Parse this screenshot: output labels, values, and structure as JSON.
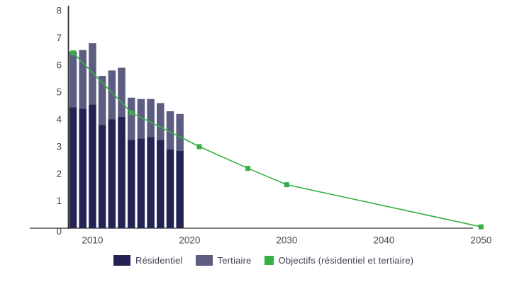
{
  "chart_data": {
    "type": "bar",
    "stacked": true,
    "title": "",
    "xlabel": "",
    "ylabel": "",
    "ylim": [
      0,
      8
    ],
    "yticks": [
      0,
      1,
      2,
      3,
      4,
      5,
      6,
      7,
      8
    ],
    "xticks": [
      2010,
      2020,
      2030,
      2040,
      2050
    ],
    "grid": false,
    "legend_position": "bottom",
    "categories": [
      2008,
      2009,
      2010,
      2011,
      2012,
      2013,
      2014,
      2015,
      2016,
      2017,
      2018,
      2019
    ],
    "series": [
      {
        "name": "Résidentiel",
        "role": "bar",
        "color": "#232454",
        "values": [
          4.45,
          4.4,
          4.55,
          3.8,
          4.0,
          4.1,
          3.25,
          3.3,
          3.35,
          3.25,
          2.9,
          2.85
        ]
      },
      {
        "name": "Tertiaire",
        "role": "bar",
        "color": "#5c5d80",
        "values": [
          2.05,
          2.15,
          2.25,
          1.8,
          1.8,
          1.8,
          1.55,
          1.45,
          1.4,
          1.35,
          1.4,
          1.35
        ]
      },
      {
        "name": "Objectifs (résidentiel et tertiaire)",
        "role": "line",
        "color": "#35b046",
        "points": [
          [
            2008,
            6.45
          ],
          [
            2014,
            4.25
          ],
          [
            2021,
            3.0
          ],
          [
            2026,
            2.2
          ],
          [
            2030,
            1.6
          ],
          [
            2050,
            0.05
          ]
        ]
      }
    ],
    "axis_color": "#333333",
    "tick_label_color": "#46464f"
  }
}
